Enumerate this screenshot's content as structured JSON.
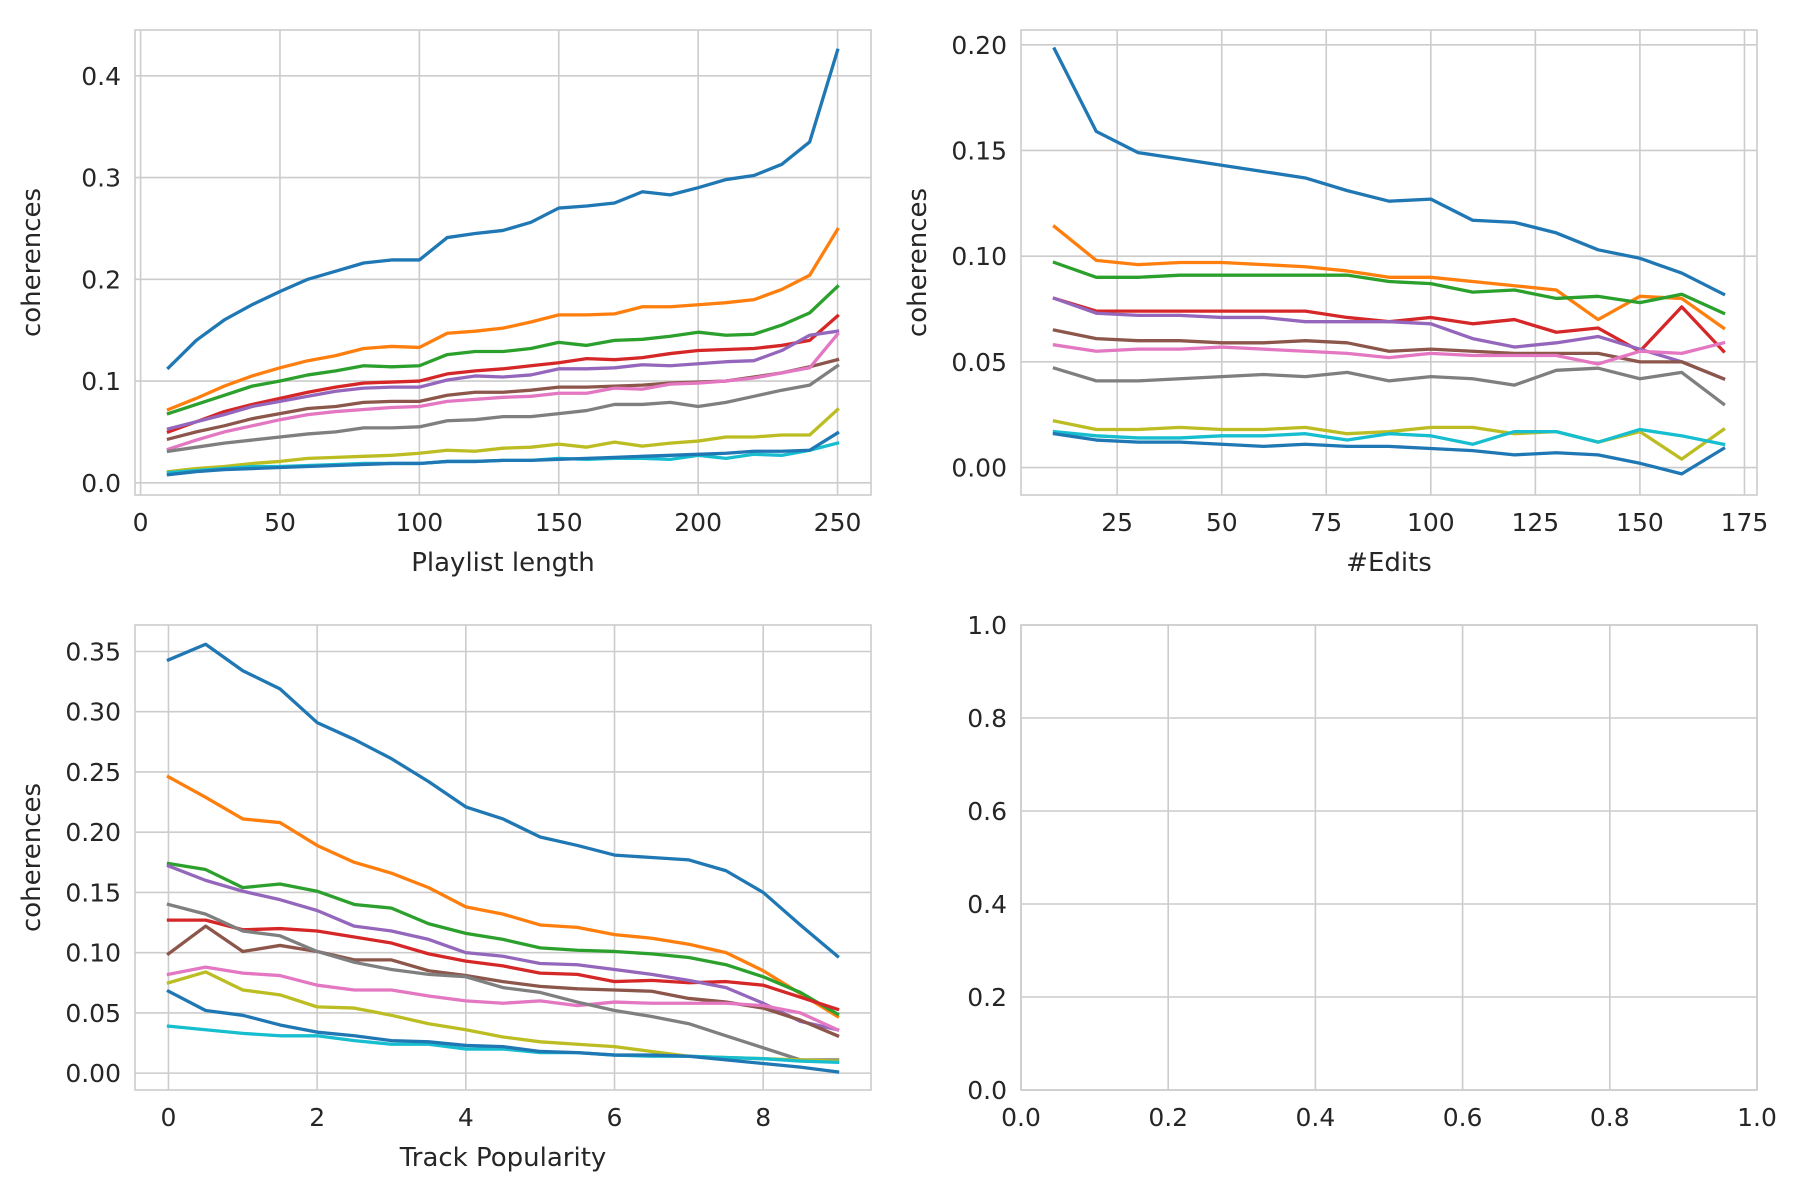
{
  "colors": [
    "#1f77b4",
    "#ff7f0e",
    "#2ca02c",
    "#d62728",
    "#9467bd",
    "#8c564b",
    "#e377c2",
    "#7f7f7f",
    "#bcbd22",
    "#17becf"
  ],
  "chart_data": [
    {
      "type": "line",
      "xlabel": "Playlist length",
      "ylabel": "coherences",
      "xlim": [
        -2,
        262
      ],
      "ylim": [
        -0.012,
        0.445
      ],
      "xticks": [
        0,
        50,
        100,
        150,
        200,
        250
      ],
      "xtick_labels": [
        "0",
        "50",
        "100",
        "150",
        "200",
        "250"
      ],
      "yticks": [
        0.0,
        0.1,
        0.2,
        0.3,
        0.4
      ],
      "ytick_labels": [
        "0.0",
        "0.1",
        "0.2",
        "0.3",
        "0.4"
      ],
      "grid": true,
      "x": [
        10,
        20,
        30,
        40,
        50,
        60,
        70,
        80,
        90,
        100,
        110,
        120,
        130,
        140,
        150,
        160,
        170,
        180,
        190,
        200,
        210,
        220,
        230,
        240,
        250
      ],
      "series": [
        {
          "values": [
            0.113,
            0.14,
            0.16,
            0.175,
            0.188,
            0.2,
            0.208,
            0.216,
            0.219,
            0.219,
            0.241,
            0.245,
            0.248,
            0.256,
            0.27,
            0.272,
            0.275,
            0.286,
            0.283,
            0.29,
            0.298,
            0.302,
            0.313,
            0.335,
            0.425
          ]
        },
        {
          "values": [
            0.072,
            0.083,
            0.095,
            0.105,
            0.113,
            0.12,
            0.125,
            0.132,
            0.134,
            0.133,
            0.147,
            0.149,
            0.152,
            0.158,
            0.165,
            0.165,
            0.166,
            0.173,
            0.173,
            0.175,
            0.177,
            0.18,
            0.19,
            0.204,
            0.249
          ]
        },
        {
          "values": [
            0.068,
            0.077,
            0.086,
            0.095,
            0.1,
            0.106,
            0.11,
            0.115,
            0.114,
            0.115,
            0.126,
            0.129,
            0.129,
            0.132,
            0.138,
            0.135,
            0.14,
            0.141,
            0.144,
            0.148,
            0.145,
            0.146,
            0.155,
            0.167,
            0.193
          ]
        },
        {
          "values": [
            0.05,
            0.06,
            0.07,
            0.077,
            0.083,
            0.089,
            0.094,
            0.098,
            0.099,
            0.1,
            0.107,
            0.11,
            0.112,
            0.115,
            0.118,
            0.122,
            0.121,
            0.123,
            0.127,
            0.13,
            0.131,
            0.132,
            0.135,
            0.14,
            0.164
          ]
        },
        {
          "values": [
            0.053,
            0.06,
            0.067,
            0.075,
            0.08,
            0.085,
            0.09,
            0.093,
            0.094,
            0.094,
            0.101,
            0.105,
            0.104,
            0.106,
            0.112,
            0.112,
            0.113,
            0.116,
            0.115,
            0.117,
            0.119,
            0.12,
            0.13,
            0.145,
            0.149
          ]
        },
        {
          "values": [
            0.043,
            0.05,
            0.056,
            0.063,
            0.068,
            0.073,
            0.075,
            0.079,
            0.08,
            0.08,
            0.086,
            0.089,
            0.089,
            0.091,
            0.094,
            0.094,
            0.095,
            0.096,
            0.098,
            0.099,
            0.1,
            0.104,
            0.108,
            0.114,
            0.121
          ]
        },
        {
          "values": [
            0.033,
            0.042,
            0.05,
            0.056,
            0.062,
            0.067,
            0.07,
            0.072,
            0.074,
            0.075,
            0.08,
            0.082,
            0.084,
            0.085,
            0.088,
            0.088,
            0.093,
            0.092,
            0.097,
            0.098,
            0.1,
            0.103,
            0.108,
            0.113,
            0.146
          ]
        },
        {
          "values": [
            0.031,
            0.035,
            0.039,
            0.042,
            0.045,
            0.048,
            0.05,
            0.054,
            0.054,
            0.055,
            0.061,
            0.062,
            0.065,
            0.065,
            0.068,
            0.071,
            0.077,
            0.077,
            0.079,
            0.075,
            0.079,
            0.085,
            0.091,
            0.096,
            0.115
          ]
        },
        {
          "values": [
            0.011,
            0.014,
            0.016,
            0.019,
            0.021,
            0.024,
            0.025,
            0.026,
            0.027,
            0.029,
            0.032,
            0.031,
            0.034,
            0.035,
            0.038,
            0.035,
            0.04,
            0.036,
            0.039,
            0.041,
            0.045,
            0.045,
            0.047,
            0.047,
            0.072
          ]
        },
        {
          "values": [
            0.01,
            0.012,
            0.014,
            0.016,
            0.016,
            0.017,
            0.018,
            0.019,
            0.019,
            0.019,
            0.021,
            0.021,
            0.022,
            0.022,
            0.024,
            0.023,
            0.024,
            0.024,
            0.023,
            0.027,
            0.024,
            0.028,
            0.027,
            0.032,
            0.039
          ]
        },
        {
          "values": [
            0.008,
            0.011,
            0.013,
            0.014,
            0.015,
            0.016,
            0.017,
            0.018,
            0.019,
            0.019,
            0.021,
            0.021,
            0.022,
            0.022,
            0.023,
            0.024,
            0.025,
            0.026,
            0.027,
            0.028,
            0.029,
            0.031,
            0.031,
            0.032,
            0.049
          ],
          "color": "#1f77b4"
        }
      ]
    },
    {
      "type": "line",
      "xlabel": "#Edits",
      "ylabel": "coherences",
      "xlim": [
        2,
        178
      ],
      "ylim": [
        -0.013,
        0.207
      ],
      "xticks": [
        25,
        50,
        75,
        100,
        125,
        150,
        175
      ],
      "xtick_labels": [
        "25",
        "50",
        "75",
        "100",
        "125",
        "150",
        "175"
      ],
      "yticks": [
        0.0,
        0.05,
        0.1,
        0.15,
        0.2
      ],
      "ytick_labels": [
        "0.00",
        "0.05",
        "0.10",
        "0.15",
        "0.20"
      ],
      "grid": true,
      "x": [
        10,
        20,
        30,
        40,
        50,
        60,
        70,
        80,
        90,
        100,
        110,
        120,
        130,
        140,
        150,
        160,
        170
      ],
      "series": [
        {
          "values": [
            0.198,
            0.159,
            0.149,
            0.146,
            0.143,
            0.14,
            0.137,
            0.131,
            0.126,
            0.127,
            0.117,
            0.116,
            0.111,
            0.103,
            0.099,
            0.092,
            0.082
          ]
        },
        {
          "values": [
            0.114,
            0.098,
            0.096,
            0.097,
            0.097,
            0.096,
            0.095,
            0.093,
            0.09,
            0.09,
            0.088,
            0.086,
            0.084,
            0.07,
            0.081,
            0.08,
            0.066
          ]
        },
        {
          "values": [
            0.097,
            0.09,
            0.09,
            0.091,
            0.091,
            0.091,
            0.091,
            0.091,
            0.088,
            0.087,
            0.083,
            0.084,
            0.08,
            0.081,
            0.078,
            0.082,
            0.073
          ]
        },
        {
          "values": [
            0.08,
            0.074,
            0.074,
            0.074,
            0.074,
            0.074,
            0.074,
            0.071,
            0.069,
            0.071,
            0.068,
            0.07,
            0.064,
            0.066,
            0.055,
            0.076,
            0.055
          ]
        },
        {
          "values": [
            0.08,
            0.073,
            0.072,
            0.072,
            0.071,
            0.071,
            0.069,
            0.069,
            0.069,
            0.068,
            0.061,
            0.057,
            0.059,
            0.062,
            0.056,
            0.05,
            0.042
          ]
        },
        {
          "values": [
            0.065,
            0.061,
            0.06,
            0.06,
            0.059,
            0.059,
            0.06,
            0.059,
            0.055,
            0.056,
            0.055,
            0.054,
            0.054,
            0.054,
            0.05,
            0.05,
            0.042
          ]
        },
        {
          "values": [
            0.058,
            0.055,
            0.056,
            0.056,
            0.057,
            0.056,
            0.055,
            0.054,
            0.052,
            0.054,
            0.053,
            0.053,
            0.053,
            0.049,
            0.055,
            0.054,
            0.059
          ]
        },
        {
          "values": [
            0.047,
            0.041,
            0.041,
            0.042,
            0.043,
            0.044,
            0.043,
            0.045,
            0.041,
            0.043,
            0.042,
            0.039,
            0.046,
            0.047,
            0.042,
            0.045,
            0.03
          ]
        },
        {
          "values": [
            0.022,
            0.018,
            0.018,
            0.019,
            0.018,
            0.018,
            0.019,
            0.016,
            0.017,
            0.019,
            0.019,
            0.016,
            0.017,
            0.012,
            0.017,
            0.004,
            0.018
          ]
        },
        {
          "values": [
            0.017,
            0.015,
            0.014,
            0.014,
            0.015,
            0.015,
            0.016,
            0.013,
            0.016,
            0.015,
            0.011,
            0.017,
            0.017,
            0.012,
            0.018,
            0.015,
            0.011
          ]
        },
        {
          "values": [
            0.016,
            0.013,
            0.012,
            0.012,
            0.011,
            0.01,
            0.011,
            0.01,
            0.01,
            0.009,
            0.008,
            0.006,
            0.007,
            0.006,
            0.002,
            -0.003,
            0.009
          ],
          "color": "#1f77b4"
        }
      ]
    },
    {
      "type": "line",
      "xlabel": "Track Popularity",
      "ylabel": "coherences",
      "xlim": [
        -0.45,
        9.45
      ],
      "ylim": [
        -0.014,
        0.372
      ],
      "xticks": [
        0,
        2,
        4,
        6,
        8
      ],
      "xtick_labels": [
        "0",
        "2",
        "4",
        "6",
        "8"
      ],
      "yticks": [
        0.0,
        0.05,
        0.1,
        0.15,
        0.2,
        0.25,
        0.3,
        0.35
      ],
      "ytick_labels": [
        "0.00",
        "0.05",
        "0.10",
        "0.15",
        "0.20",
        "0.25",
        "0.30",
        "0.35"
      ],
      "grid": true,
      "x": [
        0,
        0.5,
        1,
        1.5,
        2,
        2.5,
        3,
        3.5,
        4,
        4.5,
        5,
        5.5,
        6,
        6.5,
        7,
        7.5,
        8,
        8.5,
        9
      ],
      "series": [
        {
          "values": [
            0.343,
            0.356,
            0.334,
            0.319,
            0.291,
            0.277,
            0.261,
            0.242,
            0.221,
            0.211,
            0.196,
            0.189,
            0.181,
            0.179,
            0.177,
            0.168,
            0.15,
            0.123,
            0.097
          ]
        },
        {
          "values": [
            0.246,
            0.229,
            0.211,
            0.208,
            0.189,
            0.175,
            0.166,
            0.154,
            0.138,
            0.132,
            0.123,
            0.121,
            0.115,
            0.112,
            0.107,
            0.1,
            0.085,
            0.066,
            0.047
          ]
        },
        {
          "values": [
            0.174,
            0.169,
            0.154,
            0.157,
            0.151,
            0.14,
            0.137,
            0.124,
            0.116,
            0.111,
            0.104,
            0.102,
            0.101,
            0.099,
            0.096,
            0.09,
            0.08,
            0.067,
            0.049
          ]
        },
        {
          "values": [
            0.127,
            0.127,
            0.119,
            0.12,
            0.118,
            0.113,
            0.108,
            0.099,
            0.093,
            0.089,
            0.083,
            0.082,
            0.076,
            0.077,
            0.075,
            0.076,
            0.073,
            0.063,
            0.053
          ]
        },
        {
          "values": [
            0.172,
            0.16,
            0.151,
            0.144,
            0.135,
            0.122,
            0.118,
            0.111,
            0.1,
            0.097,
            0.091,
            0.09,
            0.086,
            0.082,
            0.077,
            0.071,
            0.058,
            0.043,
            0.036
          ]
        },
        {
          "values": [
            0.099,
            0.122,
            0.101,
            0.106,
            0.101,
            0.094,
            0.094,
            0.085,
            0.081,
            0.076,
            0.072,
            0.07,
            0.069,
            0.068,
            0.062,
            0.059,
            0.054,
            0.044,
            0.031
          ]
        },
        {
          "values": [
            0.082,
            0.088,
            0.083,
            0.081,
            0.073,
            0.069,
            0.069,
            0.064,
            0.06,
            0.058,
            0.06,
            0.056,
            0.059,
            0.058,
            0.058,
            0.058,
            0.056,
            0.05,
            0.036
          ]
        },
        {
          "values": [
            0.14,
            0.132,
            0.118,
            0.114,
            0.101,
            0.092,
            0.086,
            0.082,
            0.08,
            0.071,
            0.067,
            0.059,
            0.052,
            0.047,
            0.041,
            0.031,
            0.021,
            0.011,
            0.011
          ]
        },
        {
          "values": [
            0.075,
            0.084,
            0.069,
            0.065,
            0.055,
            0.054,
            0.048,
            0.041,
            0.036,
            0.03,
            0.026,
            0.024,
            0.022,
            0.018,
            0.014,
            0.013,
            0.012,
            0.011,
            0.01
          ]
        },
        {
          "values": [
            0.039,
            0.036,
            0.033,
            0.031,
            0.031,
            0.027,
            0.024,
            0.024,
            0.02,
            0.02,
            0.017,
            0.017,
            0.015,
            0.014,
            0.014,
            0.013,
            0.012,
            0.01,
            0.009
          ]
        },
        {
          "values": [
            0.068,
            0.052,
            0.048,
            0.04,
            0.034,
            0.031,
            0.027,
            0.026,
            0.023,
            0.022,
            0.018,
            0.017,
            0.015,
            0.015,
            0.014,
            0.011,
            0.008,
            0.005,
            0.001
          ],
          "color": "#1f77b4"
        }
      ]
    },
    {
      "type": "line",
      "xlabel": "",
      "ylabel": "",
      "xlim": [
        0,
        1
      ],
      "ylim": [
        0,
        1
      ],
      "xticks": [
        0.0,
        0.2,
        0.4,
        0.6,
        0.8,
        1.0
      ],
      "xtick_labels": [
        "0.0",
        "0.2",
        "0.4",
        "0.6",
        "0.8",
        "1.0"
      ],
      "yticks": [
        0.0,
        0.2,
        0.4,
        0.6,
        0.8,
        1.0
      ],
      "ytick_labels": [
        "0.0",
        "0.2",
        "0.4",
        "0.6",
        "0.8",
        "1.0"
      ],
      "grid": true,
      "x": [],
      "series": []
    }
  ]
}
